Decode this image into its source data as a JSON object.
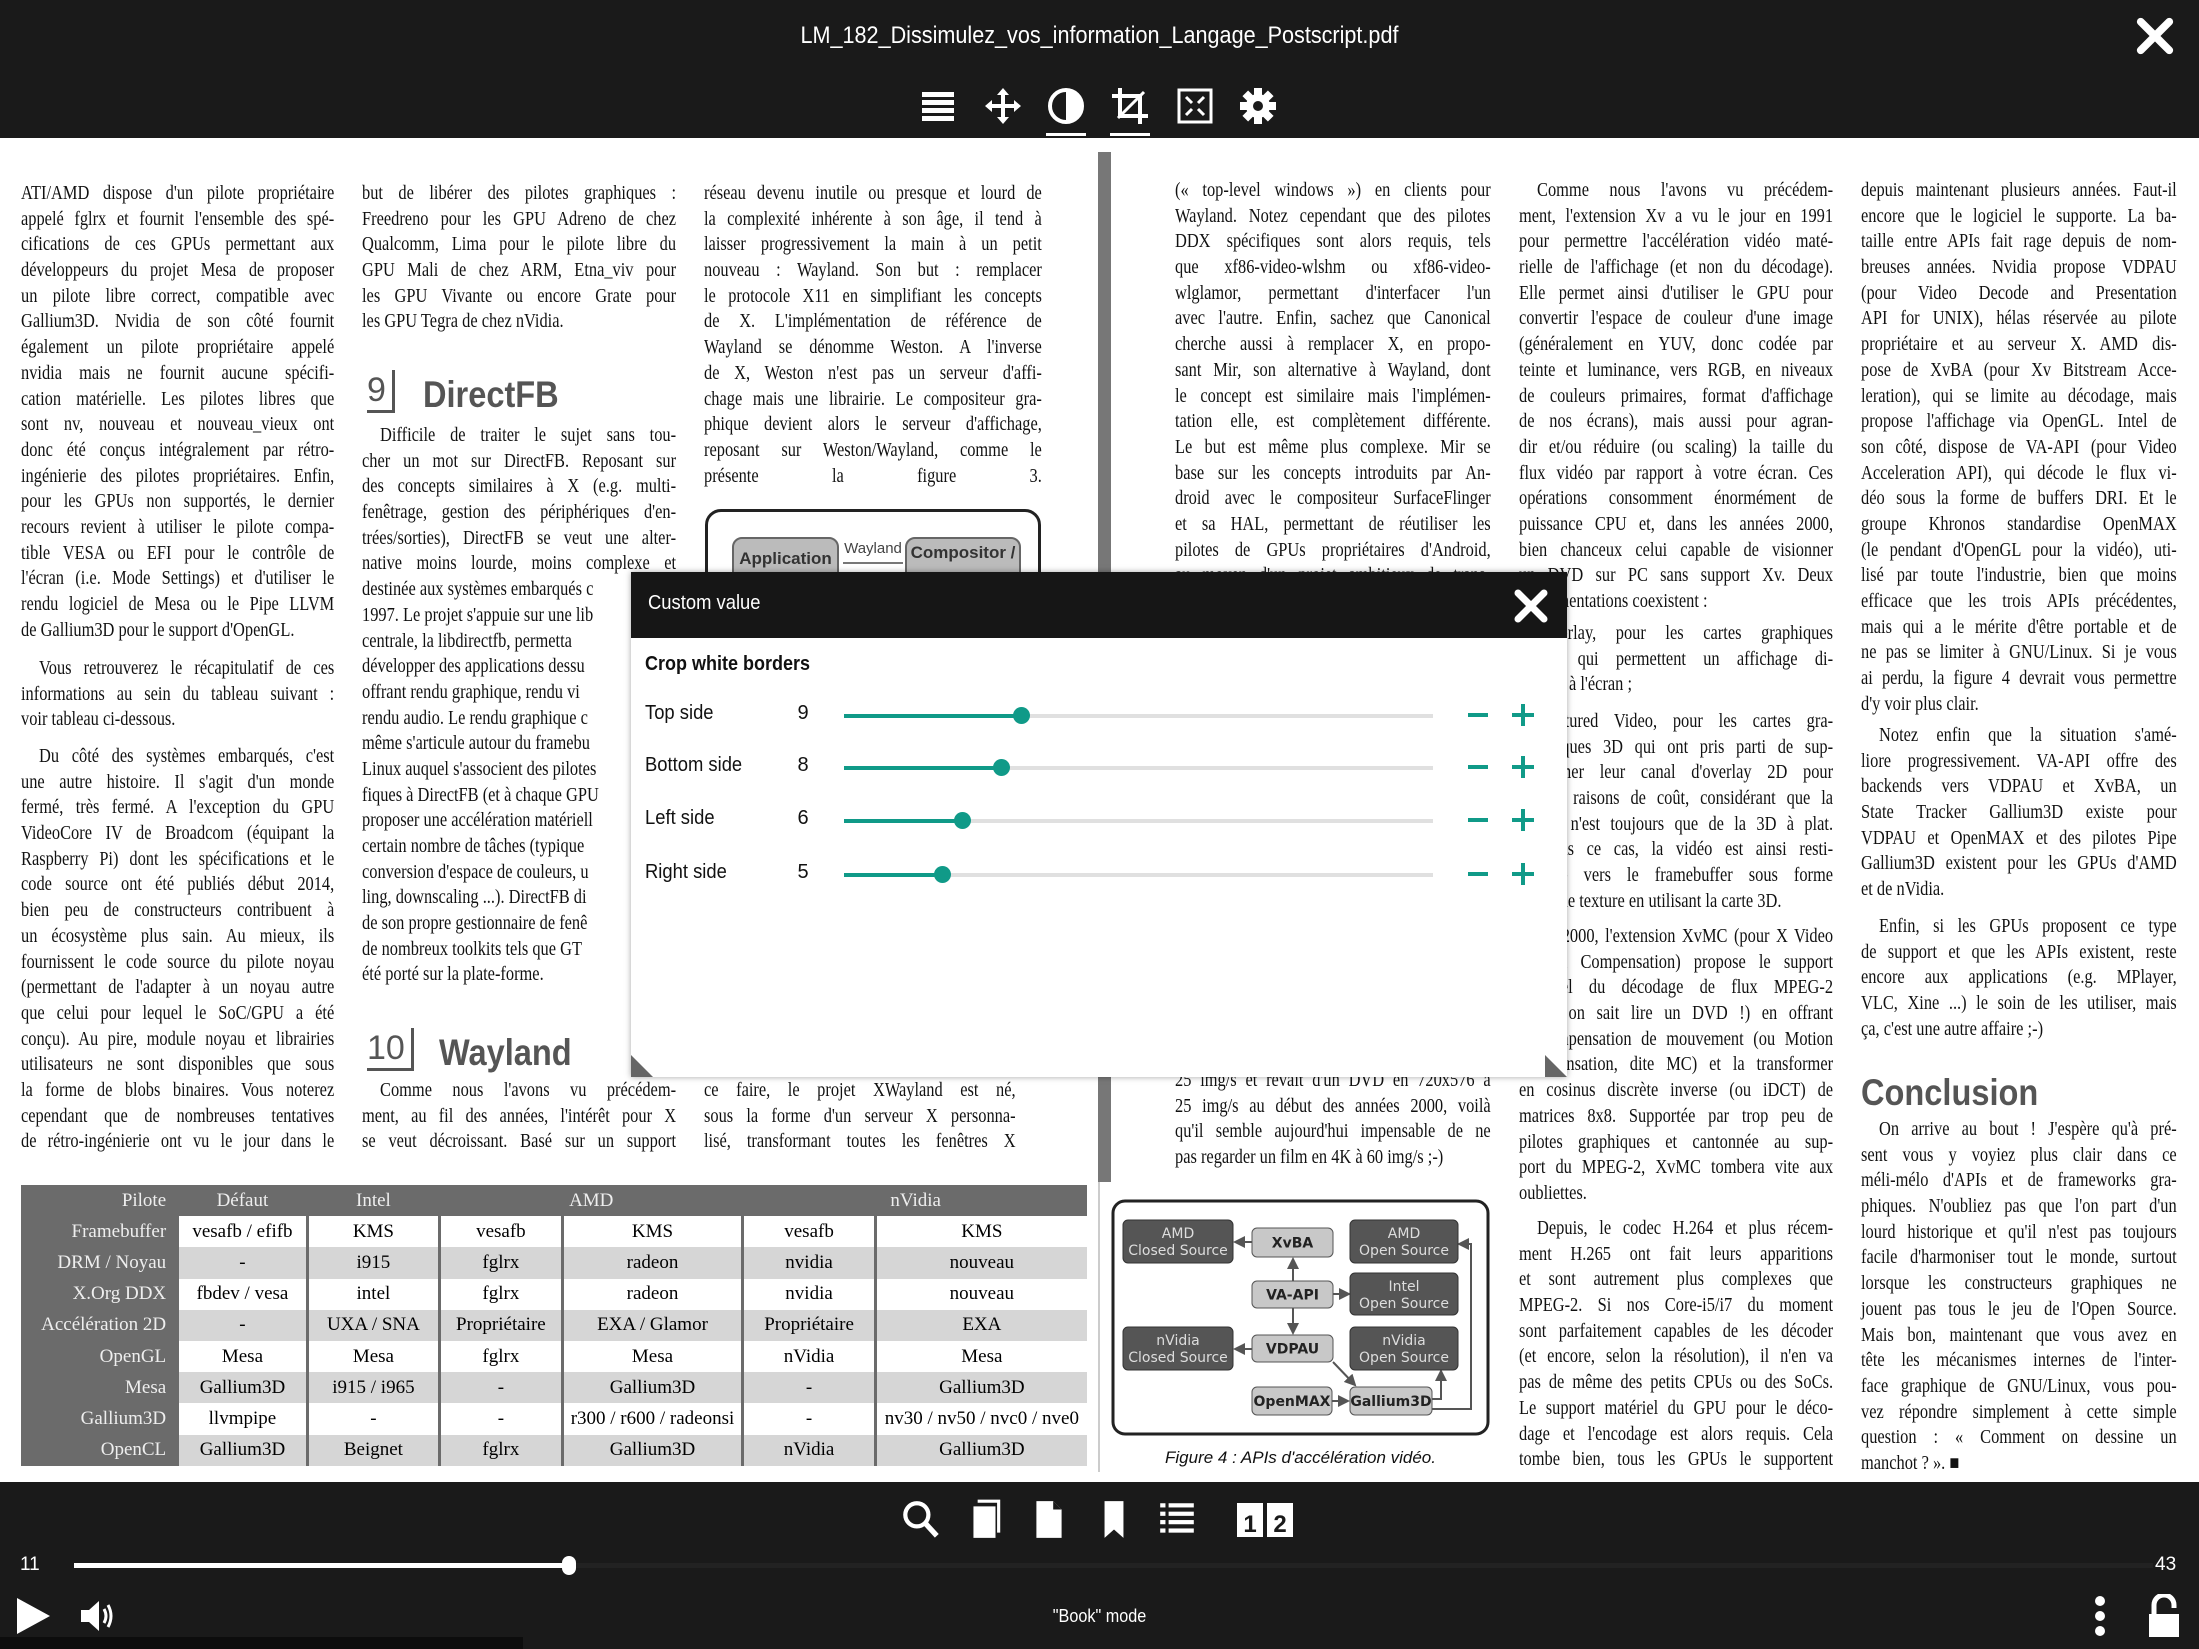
{
  "window": {
    "title": "LM_182_Dissimulez_vos_information_Langage_Postscript.pdf",
    "close_icon": "close-icon"
  },
  "toolbar": {
    "icons": [
      "menu-icon",
      "move-icon",
      "contrast-icon",
      "crop-icon",
      "fit-icon",
      "gear-icon"
    ],
    "active": [
      "contrast-icon",
      "crop-icon"
    ]
  },
  "pages": {
    "left": {
      "col1": [
        {
          "lines": [
            "ATI/AMD dispose d'un pilote propriétaire",
            "appelé fglrx et fournit l'ensemble des spé-",
            "cifications de ces GPUs permettant aux",
            "développeurs du projet Mesa de proposer",
            "un pilote libre correct, compatible avec",
            "Gallium3D. Nvidia de son côté fournit",
            "également un pilote propriétaire appelé",
            "nvidia mais ne fournit aucune spécifi-",
            "cation matérielle. Les pilotes libres que",
            "sont nv, nouveau et nouveau_vieux ont",
            "donc été conçus intégralement par rétro-",
            "ingénierie des pilotes propriétaires. Enfin,",
            "pour les GPUs non supportés, le dernier",
            "recours revient à utiliser le pilote compa-",
            "tible VESA ou EFI pour le contrôle de",
            "l'écran (i.e. Mode Settings) et d'utiliser le",
            "rendu logiciel de Mesa ou le Pipe LLVM",
            "de Gallium3D pour le support d'OpenGL."
          ]
        },
        {
          "lines": [
            "Vous retrouverez le récapitulatif de ces",
            "informations au sein du tableau suivant :",
            "voir tableau ci-dessous."
          ]
        },
        {
          "lines": [
            "Du côté des systèmes embarqués, c'est",
            "une autre histoire. Il s'agit d'un monde",
            "fermé, très fermé. A l'exception du GPU",
            "VideoCore IV de Broadcom (équipant la",
            "Raspberry Pi) dont les spécifications et le",
            "code source ont été publiés début 2014,",
            "bien peu de constructeurs contribuent à",
            "un écosystème plus sain. Au mieux, ils",
            "fournissent le code source du pilote noyau",
            "(permettant de l'adapter à un noyau autre",
            "que celui pour lequel le SoC/GPU a été",
            "conçu). Au pire, module noyau et librairies",
            "utilisateurs ne sont disponibles que sous",
            "la forme de blobs binaires. Vous noterez",
            "cependant que de nombreuses tentatives",
            "de rétro-ingénierie ont vu le jour dans le"
          ]
        }
      ],
      "col2": [
        {
          "lines": [
            "but de libérer des pilotes graphiques :",
            "Freedreno pour les GPU Adreno de chez",
            "Qualcomm, Lima pour le pilote libre du",
            "GPU Mali de chez ARM, Etna_viv pour",
            "les GPU Vivante ou encore Grate pour",
            "les GPU Tegra de chez nVidia."
          ]
        },
        {
          "lines": [
            "Difficile de traiter le sujet sans tou-",
            "cher un mot sur DirectFB. Reposant sur",
            "des concepts similaires à X (e.g. multi-",
            "fenêtrage, gestion des périphériques d'en-",
            "trées/sorties), DirectFB se veut une alter-",
            "native moins lourde, moins complexe et",
            "destinée aux systèmes embarqués c",
            "1997. Le projet s'appuie sur une lib",
            "centrale, la libdirectfb, permetta",
            "développer des applications dessu",
            "offrant rendu graphique, rendu vi",
            "rendu audio. Le rendu graphique c",
            "même s'articule autour du framebu",
            "Linux auquel s'associent des pilotes",
            "fiques à DirectFB (et à chaque GPU",
            "proposer une accélération matériell",
            "certain nombre de tâches (typique",
            "conversion d'espace de couleurs, u",
            "ling, downscaling ...). DirectFB di",
            "de son propre gestionnaire de fenê",
            "de nombreux toolkits tels que GT",
            "été porté sur la plate-forme."
          ]
        },
        {
          "lines": [
            "Comme nous l'avons vu précédem-",
            "ment, au fil des années, l'intérêt pour X",
            "se veut décroissant. Basé sur un support"
          ]
        }
      ],
      "headings": [
        {
          "num": "9",
          "text": "DirectFB"
        },
        {
          "num": "10",
          "text": "Wayland"
        }
      ],
      "col3": [
        {
          "lines": [
            "réseau devenu inutile ou presque et lourd de",
            "la complexité inhérente à son âge, il tend à",
            "laisser progressivement la main à un petit",
            "nouveau : Wayland. Son but : remplacer",
            "le protocole X11 en simplifiant les concepts",
            "de X. L'implémentation de référence de",
            "Wayland se dénomme Weston. A l'inverse",
            "de X, Weston n'est pas un serveur d'affi-",
            "chage mais une librairie. Le compositeur gra-",
            "phique devient alors le serveur d'affichage,",
            "reposant sur Weston/Wayland, comme le",
            "présente la figure 3."
          ]
        },
        {
          "lines": [
            "ce faire, le projet XWayland est né,",
            "sous la forme d'un serveur X personna-",
            "lisé, transformant toutes les fenêtres X"
          ]
        }
      ],
      "figure3": {
        "application": "Application",
        "protocol": "Wayland",
        "compositor": "Compositor /"
      },
      "table": {
        "header": [
          "Pilote",
          "Défaut",
          "Intel",
          "AMD",
          "nVidia"
        ],
        "rows": [
          [
            "Framebuffer",
            "vesafb / efifb",
            "KMS",
            "vesafb",
            "KMS",
            "vesafb",
            "KMS"
          ],
          [
            "DRM / Noyau",
            "-",
            "i915",
            "fglrx",
            "radeon",
            "nvidia",
            "nouveau"
          ],
          [
            "X.Org DDX",
            "fbdev / vesa",
            "intel",
            "fglrx",
            "radeon",
            "nvidia",
            "nouveau"
          ],
          [
            "Accélération 2D",
            "-",
            "UXA / SNA",
            "Propriétaire",
            "EXA / Glamor",
            "Propriétaire",
            "EXA"
          ],
          [
            "OpenGL",
            "Mesa",
            "Mesa",
            "fglrx",
            "Mesa",
            "nVidia",
            "Mesa"
          ],
          [
            "Mesa",
            "Gallium3D",
            "i915 / i965",
            "-",
            "Gallium3D",
            "-",
            "Gallium3D"
          ],
          [
            "Gallium3D",
            "llvmpipe",
            "-",
            "-",
            "r300 / r600 / radeonsi",
            "-",
            "nv30 / nv50 / nvc0 / nve0"
          ],
          [
            "OpenCL",
            "Gallium3D",
            "Beignet",
            "fglrx",
            "Gallium3D",
            "nVidia",
            "Gallium3D"
          ]
        ]
      }
    },
    "right": {
      "col1": [
        {
          "lines": [
            "(« top-level windows ») en clients pour",
            "Wayland. Notez cependant que des pilotes",
            "DDX spécifiques sont alors requis, tels",
            "que xf86-video-wlshm ou xf86-video-",
            "wlglamor, permettant d'interfacer l'un",
            "avec l'autre. Enfin, sachez que Canonical",
            "cherche aussi à remplacer X, en propo-",
            "sant Mir, son alternative à Wayland, dont",
            "le concept est similaire mais l'implémen-",
            "tation elle, est complètement différente.",
            "Le but est même plus complexe. Mir se",
            "base sur les concepts introduits par An-",
            "droid avec le compositeur SurfaceFlinger",
            "et sa HAL, permettant de réutiliser les",
            "pilotes de GPUs propriétaires d'Android,",
            "au moyen d'un projet ambitieux de trans-"
          ]
        },
        {
          "lines": [
            "25 img/s et revait d'un DVD en 720x576 à",
            "25 img/s au début des années 2000, voilà",
            "qu'il semble aujourd'hui impensable de ne",
            "pas regarder un film en 4K à 60 img/s ;-)"
          ]
        }
      ],
      "col2": [
        {
          "lines": [
            "Comme nous l'avons vu précédem-",
            "ment, l'extension Xv a vu le jour en 1991",
            "pour permettre l'accélération vidéo maté-",
            "rielle de l'affichage (et non du décodage).",
            "Elle permet ainsi d'utiliser le GPU pour",
            "convertir l'espace de couleur d'une image",
            "(généralement en YUV, donc codée par",
            "teinte et luminance, vers RGB, en niveaux",
            "de couleurs primaires, format d'affichage",
            "de nos écrans), mais aussi pour agran-",
            "dir et/ou réduire (ou scaling) la taille du",
            "flux vidéo par rapport à votre écran. Ces",
            "opérations consomment énormément de",
            "puissance CPU et, dans les années 2000,",
            "bien chanceux celui capable de visionner",
            "un DVD sur PC sans support Xv. Deux",
            "implémentations coexistent :"
          ]
        },
        {
          "lines": [
            "Overlay, pour les cartes graphiques",
            "2D qui permettent un affichage di-",
            "rect à l'écran ;"
          ]
        },
        {
          "lines": [
            "Textured Video, pour les cartes gra-",
            "phiques 3D qui ont pris parti de sup-",
            "primer leur canal d'overlay 2D pour",
            "des raisons de coût, considérant que la",
            "2D n'est toujours que de la 3D à plat.",
            "Dans ce cas, la vidéo est ainsi resti-",
            "tuée vers le framebuffer sous forme",
            "d'une texture en utilisant la carte 3D."
          ]
        },
        {
          "lines": [
            "En 2000, l'extension XvMC (pour X Video",
            "Motion Compensation) propose le support",
            "matériel du décodage de flux MPEG-2",
            "(c'est, on sait lire un DVD !) en offrant",
            "la compensation de mouvement (ou Motion",
            "Compensation, dite MC) et la transformer",
            "en cosinus discrète inverse (ou iDCT) de",
            "matrices 8x8. Supportée par trop peu de",
            "pilotes graphiques et cantonnée au sup-",
            "port du MPEG-2, XvMC tombera vite aux",
            "oubliettes."
          ]
        },
        {
          "lines": [
            "Depuis, le codec H.264 et plus récem-",
            "ment H.265 ont fait leurs apparitions",
            "et sont autrement plus complexes que",
            "MPEG-2. Si nos Core-i5/i7 du moment",
            "sont parfaitement capables de les décoder",
            "(et encore, selon la résolution), il n'en va",
            "pas de même des petits CPUs ou des SoCs.",
            "Le support matériel du GPU pour le déco-",
            "dage et l'encodage est alors requis. Cela",
            "tombe bien, tous les GPUs le supportent"
          ]
        }
      ],
      "col3": [
        {
          "lines": [
            "depuis maintenant plusieurs années. Faut-il",
            "encore que le logiciel le supporte. La ba-",
            "taille entre APIs fait rage depuis de nom-",
            "breuses années. Nvidia propose VDPAU",
            "(pour Video Decode and Presentation",
            "API for UNIX), hélas réservée au pilote",
            "propriétaire et au serveur X. AMD dis-",
            "pose de XvBA (pour Xv Bitstream Acce-",
            "leration), qui se limite au décodage, mais",
            "propose l'affichage via OpenGL. Intel de",
            "son côté, dispose de VA-API (pour Video",
            "Acceleration API), qui décode le flux vi-",
            "déo sous la forme de buffers DRI. Et le",
            "groupe Khronos standardise OpenMAX",
            "(le pendant d'OpenGL pour la vidéo), uti-",
            "lisé par toute l'industrie, bien que moins",
            "efficace que les trois APIs précédentes,",
            "mais qui a le mérite d'être portable et de",
            "ne pas se limiter à GNU/Linux. Si je vous",
            "ai perdu, la figure 4 devrait vous permettre",
            "d'y voir plus clair."
          ]
        },
        {
          "lines": [
            "Notez enfin que la situation s'amé-",
            "liore progressivement. VA-API offre des",
            "backends vers VDPAU et XvBA, un",
            "State Tracker Gallium3D existe pour",
            "VDPAU et OpenMAX et des pilotes Pipe",
            "Gallium3D existent pour les GPUs d'AMD",
            "et de nVidia."
          ]
        },
        {
          "lines": [
            "Enfin, si les GPUs proposent ce type",
            "de support et que les APIs existent, reste",
            "encore aux applications (e.g. MPlayer,",
            "VLC, Xine ...) le soin de les utiliser, mais",
            "ça, c'est une autre affaire ;-)"
          ]
        },
        {
          "lines": [
            "On arrive au bout ! J'espère qu'à pré-",
            "sent vous y voyiez plus clair dans ce",
            "méli-mélo d'APIs et de frameworks gra-",
            "phiques. N'oubliez pas que l'on part d'un",
            "lourd historique et qu'il n'est pas toujours",
            "facile d'harmoniser tout le monde, surtout",
            "lorsque les constructeurs graphiques ne",
            "jouent pas tous le jeu de l'Open Source.",
            "Mais bon, maintenant que vous avez en",
            "tête les mécanismes internes de l'inter-",
            "face graphique de GNU/Linux, vous pou-",
            "vez répondre simplement à cette simple",
            "question : « Comment on dessine un",
            "manchot ? ». ■"
          ]
        }
      ],
      "conclusion_heading": "Conclusion",
      "figure4": {
        "nodes": {
          "amd_closed": [
            "AMD",
            "Closed Source"
          ],
          "xvba": "XvBA",
          "amd_open": [
            "AMD",
            "Open Source"
          ],
          "vaapi": "VA-API",
          "intel_open": [
            "Intel",
            "Open Source"
          ],
          "nvidia_closed": [
            "nVidia",
            "Closed Source"
          ],
          "vdpau": "VDPAU",
          "nvidia_open": [
            "nVidia",
            "Open Source"
          ],
          "openmax": "OpenMAX",
          "gallium": "Gallium3D"
        },
        "caption": "Figure 4 : APIs d'accélération vidéo."
      }
    }
  },
  "dialog": {
    "title": "Custom value",
    "section": "Crop white borders",
    "accent": "#109a88",
    "slider_min": 0,
    "slider_max": 30,
    "rows": [
      {
        "label": "Top side",
        "value": 9
      },
      {
        "label": "Bottom side",
        "value": 8
      },
      {
        "label": "Left side",
        "value": 6
      },
      {
        "label": "Right side",
        "value": 5
      }
    ]
  },
  "bottombar": {
    "icons": [
      "search-icon",
      "book-icon",
      "page-icon",
      "bookmark-icon",
      "list-icon",
      "two-page-icon"
    ],
    "page_current": "11",
    "page_total": "43",
    "mode": "\"Book\" mode"
  }
}
